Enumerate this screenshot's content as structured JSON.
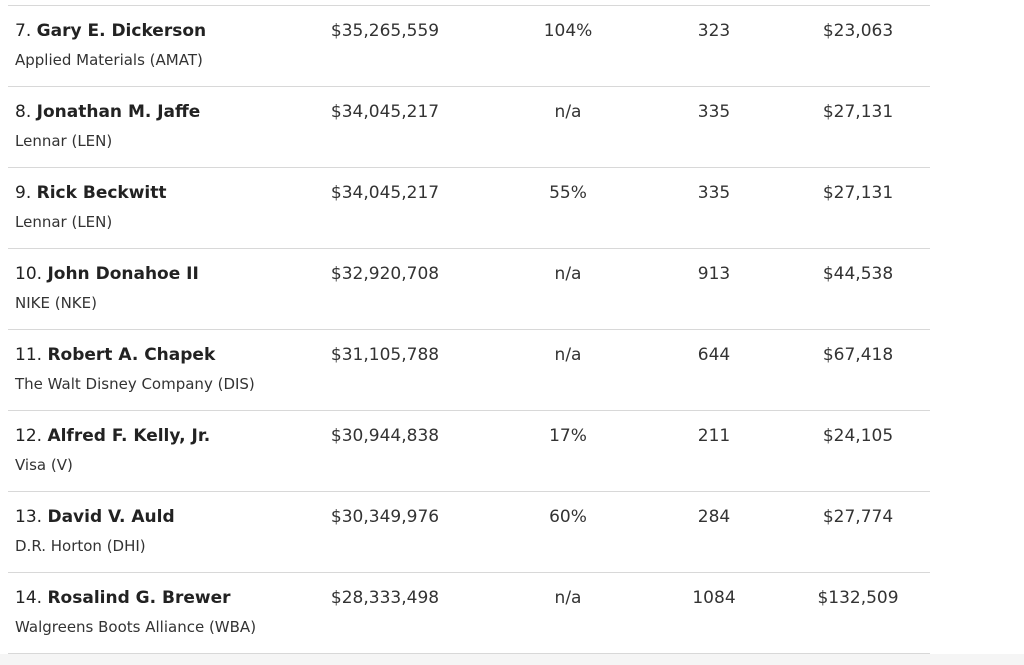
{
  "table": {
    "rows": [
      {
        "rank": "7.",
        "name": "Gary E. Dickerson",
        "company": "Applied Materials (AMAT)",
        "cells": [
          "$35,265,559",
          "104%",
          "323",
          "$23,063"
        ]
      },
      {
        "rank": "8.",
        "name": "Jonathan M. Jaffe",
        "company": "Lennar (LEN)",
        "cells": [
          "$34,045,217",
          "n/a",
          "335",
          "$27,131"
        ]
      },
      {
        "rank": "9.",
        "name": "Rick Beckwitt",
        "company": "Lennar (LEN)",
        "cells": [
          "$34,045,217",
          "55%",
          "335",
          "$27,131"
        ]
      },
      {
        "rank": "10.",
        "name": "John Donahoe II",
        "company": "NIKE (NKE)",
        "cells": [
          "$32,920,708",
          "n/a",
          "913",
          "$44,538"
        ]
      },
      {
        "rank": "11.",
        "name": "Robert A. Chapek",
        "company": "The Walt Disney Company (DIS)",
        "cells": [
          "$31,105,788",
          "n/a",
          "644",
          "$67,418"
        ]
      },
      {
        "rank": "12.",
        "name": "Alfred F. Kelly, Jr.",
        "company": "Visa (V)",
        "cells": [
          "$30,944,838",
          "17%",
          "211",
          "$24,105"
        ]
      },
      {
        "rank": "13.",
        "name": "David V. Auld",
        "company": "D.R. Horton (DHI)",
        "cells": [
          "$30,349,976",
          "60%",
          "284",
          "$27,774"
        ]
      },
      {
        "rank": "14.",
        "name": "Rosalind G. Brewer",
        "company": "Walgreens Boots Alliance (WBA)",
        "cells": [
          "$28,333,498",
          "n/a",
          "1084",
          "$132,509"
        ]
      }
    ]
  }
}
